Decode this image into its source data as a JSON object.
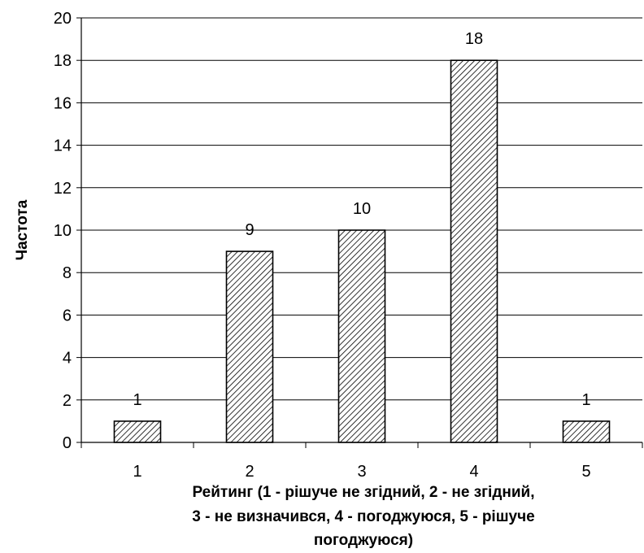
{
  "chart_data": {
    "type": "bar",
    "categories": [
      "1",
      "2",
      "3",
      "4",
      "5"
    ],
    "values": [
      1,
      9,
      10,
      18,
      1
    ],
    "data_labels": [
      "1",
      "9",
      "10",
      "18",
      "1"
    ],
    "ylabel": "Частота",
    "xlabel_lines": [
      "Рейтинг (1 - рішуче не згідний, 2 - не згідний,",
      "3 - не визначився, 4 - погоджуюся, 5 - рішуче",
      "погоджуюся)"
    ],
    "ylim": [
      0,
      20
    ],
    "yticks": [
      0,
      2,
      4,
      6,
      8,
      10,
      12,
      14,
      16,
      18,
      20
    ],
    "grid": true,
    "legend": "none",
    "bar_fill": "hatched",
    "colors": {
      "bar_stroke": "#000000",
      "hatch": "#000000",
      "grid": "#000000"
    }
  }
}
